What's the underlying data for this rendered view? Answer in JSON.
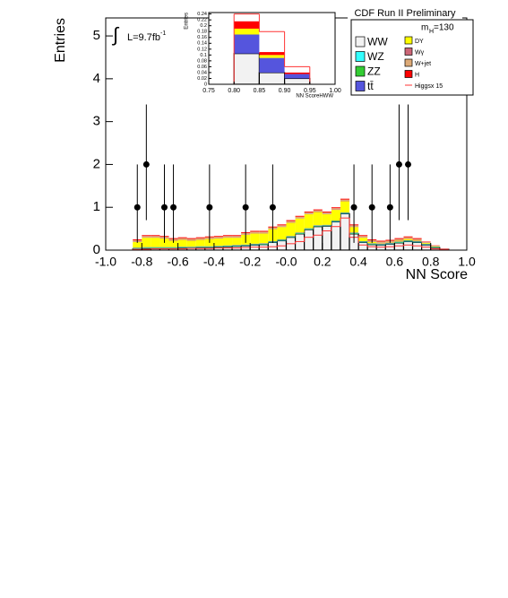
{
  "chart_data": [
    {
      "type": "histogram",
      "stacked": true,
      "title": "CDF Run II Preliminary",
      "lumi_symbol": "∫",
      "lumi": "L=9.7fb",
      "lumi_exp": "-1",
      "mass_label": "m",
      "mass_sub": "H",
      "mass_value": "=130",
      "x_label": "NN Score",
      "y_label": "Entries",
      "legend": "upper right",
      "bins": [
        -1,
        -0.95,
        -0.9,
        -0.85,
        -0.8,
        -0.75,
        -0.7,
        -0.65,
        -0.6,
        -0.55,
        -0.5,
        -0.45,
        -0.4,
        -0.35,
        -0.3,
        -0.25,
        -0.2,
        -0.15,
        -0.1,
        -0.05,
        0,
        0.05,
        0.1,
        0.15,
        0.2,
        0.25,
        0.3,
        0.35,
        0.4,
        0.45,
        0.5,
        0.55,
        0.6,
        0.65,
        0.7,
        0.75,
        0.8,
        0.85,
        0.9,
        0.95,
        1
      ],
      "xlim": [
        -1,
        1
      ],
      "ylim": [
        0,
        5.42
      ],
      "xticks": [
        {
          "value": -1,
          "label": "-1.0"
        },
        {
          "value": -0.8,
          "label": "-0.8"
        },
        {
          "value": -0.6,
          "label": "-0.6"
        },
        {
          "value": -0.4,
          "label": "-0.4"
        },
        {
          "value": -0.2,
          "label": "-0.2"
        },
        {
          "value": 0,
          "label": "-0.0"
        },
        {
          "value": 0.2,
          "label": "0.2"
        },
        {
          "value": 0.4,
          "label": "0.4"
        },
        {
          "value": 0.6,
          "label": "0.6"
        },
        {
          "value": 0.8,
          "label": "0.8"
        },
        {
          "value": 1,
          "label": "1.0"
        }
      ],
      "yticks": [
        0,
        1,
        2,
        3,
        4,
        5
      ],
      "series": [
        {
          "name": "WW",
          "color": "#f2f2f2",
          "values": [
            0,
            0,
            0,
            0.03,
            0.04,
            0.04,
            0.04,
            0.04,
            0.05,
            0.05,
            0.06,
            0.06,
            0.07,
            0.08,
            0.09,
            0.1,
            0.12,
            0.13,
            0.18,
            0.22,
            0.3,
            0.38,
            0.48,
            0.55,
            0.56,
            0.66,
            0.85,
            0.38,
            0.18,
            0.13,
            0.12,
            0.14,
            0.17,
            0.2,
            0.18,
            0.12,
            0.06,
            0.02,
            0,
            0
          ]
        },
        {
          "name": "WZ",
          "color": "#33ffff",
          "values": [
            0,
            0,
            0,
            0.01,
            0.01,
            0.01,
            0.01,
            0.01,
            0.01,
            0.01,
            0.01,
            0.01,
            0.01,
            0.01,
            0.01,
            0.01,
            0.01,
            0.01,
            0.01,
            0.01,
            0.01,
            0.01,
            0.01,
            0.01,
            0.01,
            0.01,
            0.01,
            0.01,
            0.01,
            0.01,
            0.01,
            0.01,
            0.01,
            0.01,
            0.01,
            0.01,
            0.01,
            0,
            0,
            0
          ]
        },
        {
          "name": "ZZ",
          "color": "#33cc33",
          "values": [
            0,
            0,
            0,
            0.01,
            0.01,
            0.01,
            0.01,
            0.01,
            0.01,
            0.01,
            0.01,
            0.01,
            0.01,
            0.01,
            0.01,
            0.01,
            0.01,
            0.01,
            0.01,
            0.01,
            0.01,
            0.01,
            0.01,
            0.01,
            0.01,
            0.01,
            0.01,
            0.01,
            0.01,
            0.01,
            0.01,
            0.01,
            0.01,
            0.01,
            0.01,
            0.01,
            0.01,
            0,
            0,
            0
          ]
        },
        {
          "name": "tt̄",
          "color": "#5555dd",
          "values": [
            0,
            0,
            0,
            0.01,
            0.01,
            0.01,
            0.01,
            0.01,
            0.01,
            0.01,
            0.01,
            0.01,
            0.01,
            0.01,
            0.01,
            0.01,
            0.01,
            0.01,
            0.01,
            0.01,
            0.01,
            0.01,
            0.01,
            0.01,
            0.01,
            0.01,
            0.01,
            0.01,
            0.01,
            0.01,
            0.01,
            0.01,
            0.01,
            0.01,
            0.01,
            0.01,
            0,
            0,
            0,
            0
          ]
        },
        {
          "name": "DY",
          "color": "#ffff00",
          "values": [
            0,
            0,
            0,
            0.13,
            0.22,
            0.22,
            0.2,
            0.15,
            0.16,
            0.14,
            0.15,
            0.17,
            0.17,
            0.18,
            0.17,
            0.23,
            0.24,
            0.23,
            0.28,
            0.29,
            0.31,
            0.33,
            0.33,
            0.31,
            0.25,
            0.25,
            0.26,
            0.13,
            0.08,
            0.03,
            0.01,
            0.01,
            0.02,
            0.03,
            0.01,
            0.02,
            0.01,
            0,
            0,
            0
          ]
        },
        {
          "name": "Wγ",
          "color": "#cc6677",
          "values": [
            0,
            0,
            0,
            0.01,
            0.01,
            0.01,
            0.01,
            0.01,
            0.01,
            0.01,
            0.01,
            0.01,
            0.01,
            0.01,
            0.01,
            0.01,
            0.01,
            0.01,
            0.01,
            0.01,
            0.01,
            0.01,
            0.01,
            0.01,
            0.01,
            0.01,
            0.01,
            0.01,
            0.01,
            0.01,
            0.01,
            0.01,
            0.01,
            0.01,
            0.01,
            0.01,
            0,
            0,
            0,
            0
          ]
        },
        {
          "name": "W+jet",
          "color": "#ddaa77",
          "values": [
            0,
            0,
            0,
            0.03,
            0.03,
            0.03,
            0.03,
            0.03,
            0.03,
            0.03,
            0.03,
            0.03,
            0.03,
            0.03,
            0.03,
            0.03,
            0.03,
            0.03,
            0.03,
            0.03,
            0.03,
            0.03,
            0.03,
            0.03,
            0.03,
            0.03,
            0.03,
            0.03,
            0.03,
            0.03,
            0.03,
            0.03,
            0.03,
            0.03,
            0.03,
            0.01,
            0.01,
            0,
            0,
            0
          ]
        },
        {
          "name": "H",
          "color": "#ff0000",
          "values": [
            0,
            0,
            0,
            0.02,
            0.02,
            0.02,
            0.02,
            0.02,
            0.02,
            0.02,
            0.02,
            0.02,
            0.02,
            0.02,
            0.02,
            0.02,
            0.02,
            0.02,
            0.02,
            0.02,
            0.02,
            0.02,
            0.02,
            0.02,
            0.02,
            0.02,
            0.02,
            0.02,
            0.02,
            0.02,
            0.02,
            0.02,
            0.02,
            0.02,
            0.02,
            0.01,
            0.01,
            0.01,
            0,
            0
          ]
        }
      ],
      "signal": {
        "name": "Higgsx 15",
        "color": "#ff3333",
        "values": [
          0,
          0,
          0,
          0.02,
          0.02,
          0.03,
          0.03,
          0.03,
          0.03,
          0.04,
          0.04,
          0.04,
          0.05,
          0.05,
          0.05,
          0.06,
          0.07,
          0.07,
          0.08,
          0.1,
          0.15,
          0.2,
          0.3,
          0.35,
          0.45,
          0.55,
          0.75,
          0.3,
          0.12,
          0.08,
          0.07,
          0.08,
          0.1,
          0.12,
          0.1,
          0.07,
          0.03,
          0.01,
          0,
          0
        ]
      },
      "data": {
        "x": [
          -0.825,
          -0.775,
          -0.675,
          -0.625,
          -0.425,
          -0.225,
          -0.075,
          0.375,
          0.475,
          0.575,
          0.625,
          0.675
        ],
        "values": [
          1,
          2,
          1,
          1,
          1,
          1,
          1,
          1,
          1,
          1,
          2,
          2
        ],
        "err_low": [
          0.83,
          1.3,
          0.83,
          0.83,
          0.83,
          0.83,
          0.83,
          0.83,
          0.83,
          0.83,
          1.3,
          1.3
        ],
        "err_high": [
          1,
          1.4,
          1,
          1,
          1,
          1,
          1,
          1,
          1,
          1,
          1.4,
          1.4
        ]
      }
    },
    {
      "type": "histogram",
      "stacked": true,
      "x_label": "NN ScoreHWW",
      "y_label": "Entries",
      "bins": [
        0.75,
        0.8,
        0.85,
        0.9,
        0.95,
        1
      ],
      "xlim": [
        0.75,
        1
      ],
      "ylim": [
        0,
        0.245
      ],
      "xticks": [
        {
          "value": 0.75,
          "label": "0.75"
        },
        {
          "value": 0.8,
          "label": "0.80"
        },
        {
          "value": 0.85,
          "label": "0.85"
        },
        {
          "value": 0.9,
          "label": "0.90"
        },
        {
          "value": 0.95,
          "label": "0.95"
        },
        {
          "value": 1,
          "label": "1.00"
        }
      ],
      "yticks": [
        0,
        0.02,
        0.04,
        0.06,
        0.08,
        0.1,
        0.12,
        0.14,
        0.16,
        0.18,
        0.2,
        0.22,
        0.24
      ],
      "series": [
        {
          "color": "#f2f2f2",
          "values": [
            0,
            0.105,
            0.04,
            0.02,
            0
          ]
        },
        {
          "color": "#5555dd",
          "values": [
            0,
            0.065,
            0.05,
            0.015,
            0
          ]
        },
        {
          "color": "#ffff00",
          "values": [
            0,
            0.02,
            0.01,
            0,
            0
          ]
        },
        {
          "color": "#ff0000",
          "values": [
            0,
            0.025,
            0.01,
            0.005,
            0
          ]
        }
      ],
      "signal": {
        "color": "#ff3333",
        "values": [
          0,
          0.24,
          0.18,
          0.06,
          0
        ]
      }
    }
  ]
}
